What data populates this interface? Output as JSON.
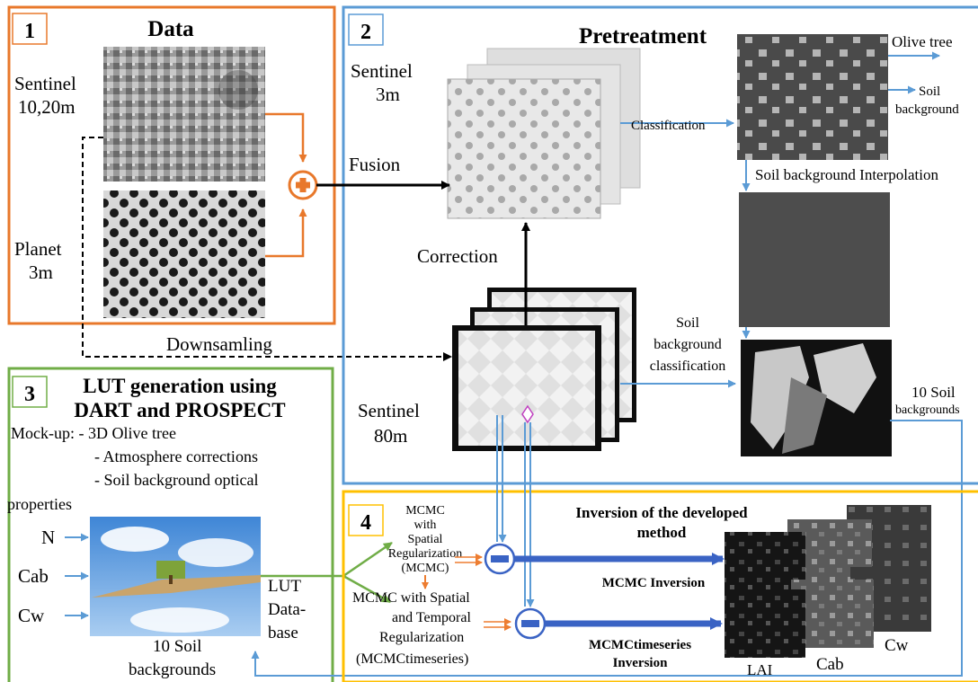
{
  "panels": {
    "data": {
      "number": "1",
      "title": "Data",
      "sentinel_label": [
        "Sentinel",
        "10,20m"
      ],
      "planet_label": [
        "Planet",
        "3m"
      ],
      "downsampling": "Downsamling",
      "color": "#e8782b"
    },
    "pretreatment": {
      "number": "2",
      "title": "Pretreatment",
      "sentinel3m_label": [
        "Sentinel",
        "3m"
      ],
      "fusion": "Fusion",
      "correction": "Correction",
      "classification": "Classification",
      "olive_tree": "Olive tree",
      "soil_background": [
        "Soil",
        "background"
      ],
      "soil_interp": "Soil background Interpolation",
      "sentinel80m_label": [
        "Sentinel",
        "80m"
      ],
      "soil_bg_classification": [
        "Soil",
        "background",
        "classification"
      ],
      "ten_soil_backgrounds": [
        "10 Soil",
        "backgrounds"
      ],
      "color": "#5b9bd5"
    },
    "lut": {
      "number": "3",
      "title": [
        "LUT generation using",
        "DART and PROSPECT"
      ],
      "mockup": [
        "Mock-up: - 3D Olive tree",
        "- Atmosphere corrections",
        "- Soil background optical",
        "properties"
      ],
      "inputs": [
        "N",
        "Cab",
        "Cw"
      ],
      "ten_soil": [
        "10 Soil",
        "backgrounds"
      ],
      "lut_db": [
        "LUT",
        "Data-",
        "base"
      ],
      "color": "#70ad47"
    },
    "inversion": {
      "number": "4",
      "title": [
        "Inversion of the developed",
        "method"
      ],
      "mcmc_method": [
        "MCMC",
        "with",
        "Spatial",
        "Regularization",
        "(MCMC)"
      ],
      "mcmcts_method": [
        "MCMC with  Spatial",
        "and Temporal",
        "Regularization",
        "(MCMCtimeseries)"
      ],
      "mcmc_inversion": "MCMC Inversion",
      "mcmcts_inversion": [
        "MCMCtimeseries",
        "Inversion"
      ],
      "outputs": [
        "LAI",
        "Cab",
        "Cw"
      ],
      "color": "#ffc000"
    }
  },
  "icons": {
    "fusion_plus": "plus-circle-icon",
    "minus_ops": "minus-circle-icon"
  }
}
